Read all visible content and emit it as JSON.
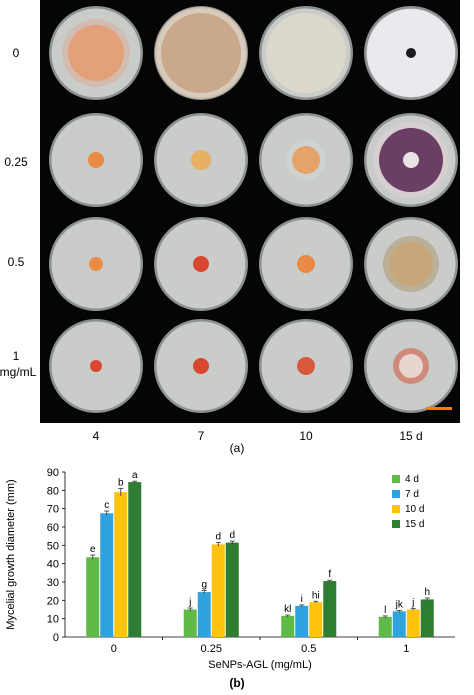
{
  "panel_a": {
    "row_labels": [
      "0",
      "0.25",
      "0.5",
      "1",
      "mg/mL"
    ],
    "col_labels": [
      "4",
      "7",
      "10",
      "15 d"
    ],
    "caption": "(a)",
    "colors": {
      "background": "#050505",
      "agar": "#c9ccc8",
      "colony_early": "#e3a079",
      "colony_mid": "#ea8b45",
      "colony_red": "#d9472e",
      "mycelium_white": "#ece9ee",
      "mycelium_purple": "#6b3e66",
      "scale_bar": "#f08000"
    }
  },
  "chart_data": {
    "type": "bar",
    "categories": [
      "0",
      "0.25",
      "0.5",
      "1"
    ],
    "xlabel": "SeNPs-AGL (mg/mL)",
    "ylabel": "Mycelial growth diameter (mm)",
    "ylim": [
      0,
      90
    ],
    "yticks": [
      "0",
      "10",
      "20",
      "30",
      "40",
      "50",
      "60",
      "70",
      "80",
      "90"
    ],
    "grid": false,
    "legend_position": "top-right",
    "series": [
      {
        "name": "4 d",
        "color": "#5fba47",
        "values": [
          43.5,
          15,
          11.5,
          11
        ],
        "errors": [
          1.2,
          0.8,
          0.5,
          0.5
        ],
        "letters": [
          "e",
          "j",
          "kl",
          "l"
        ]
      },
      {
        "name": "7 d",
        "color": "#2ea3dd",
        "values": [
          67.5,
          24.5,
          17,
          14
        ],
        "errors": [
          1.2,
          0.8,
          0.5,
          0.5
        ],
        "letters": [
          "c",
          "g",
          "i",
          "jk"
        ]
      },
      {
        "name": "10 d",
        "color": "#ffc20e",
        "values": [
          79,
          50.5,
          19,
          15
        ],
        "errors": [
          2,
          1,
          0.5,
          0.5
        ],
        "letters": [
          "b",
          "d",
          "hi",
          "j"
        ]
      },
      {
        "name": "15 d",
        "color": "#2e7d32",
        "values": [
          84.5,
          51.5,
          30.5,
          20.5
        ],
        "errors": [
          0.5,
          0.8,
          0.5,
          0.8
        ],
        "letters": [
          "a",
          "d",
          "f",
          "h"
        ]
      }
    ]
  },
  "panel_b": {
    "caption": "(b)"
  }
}
